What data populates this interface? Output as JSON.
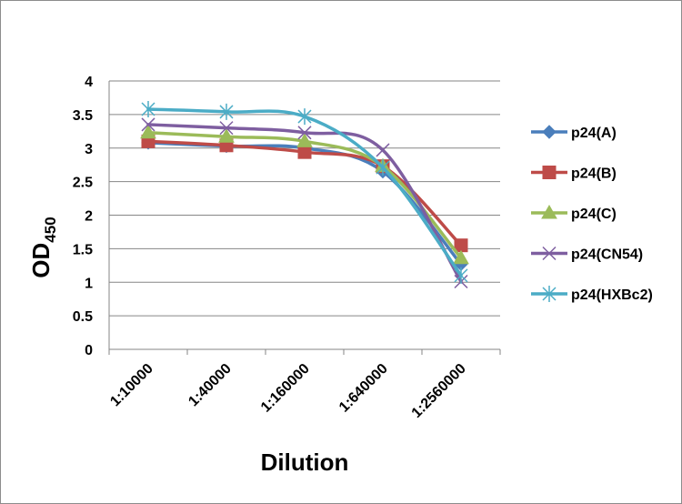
{
  "chart_data": {
    "type": "line",
    "xlabel": "Dilution",
    "ylabel": "OD",
    "ylabel_subscript": "450",
    "categories": [
      "1:10000",
      "1:40000",
      "1:160000",
      "1:640000",
      "1:2560000"
    ],
    "ylim": [
      0,
      4
    ],
    "yticks": [
      "0",
      "0.5",
      "1",
      "1.5",
      "2",
      "2.5",
      "3",
      "3.5",
      "4"
    ],
    "grid": "horizontal",
    "legend_position": "right",
    "smooth": true,
    "series": [
      {
        "name": "p24(A)",
        "color": "#4A7EBB",
        "marker": "diamond",
        "values": [
          3.08,
          3.03,
          3.0,
          2.65,
          1.27
        ]
      },
      {
        "name": "p24(B)",
        "color": "#BE4B48",
        "marker": "square",
        "values": [
          3.1,
          3.04,
          2.94,
          2.73,
          1.55
        ]
      },
      {
        "name": "p24(C)",
        "color": "#9BBB59",
        "marker": "triangle",
        "values": [
          3.23,
          3.17,
          3.1,
          2.73,
          1.36
        ]
      },
      {
        "name": "p24(CN54)",
        "color": "#7E5EA0",
        "marker": "x",
        "values": [
          3.35,
          3.3,
          3.23,
          2.97,
          1.01
        ]
      },
      {
        "name": "p24(HXBc2)",
        "color": "#4BACC6",
        "marker": "star",
        "values": [
          3.58,
          3.54,
          3.47,
          2.71,
          1.1
        ]
      }
    ]
  }
}
